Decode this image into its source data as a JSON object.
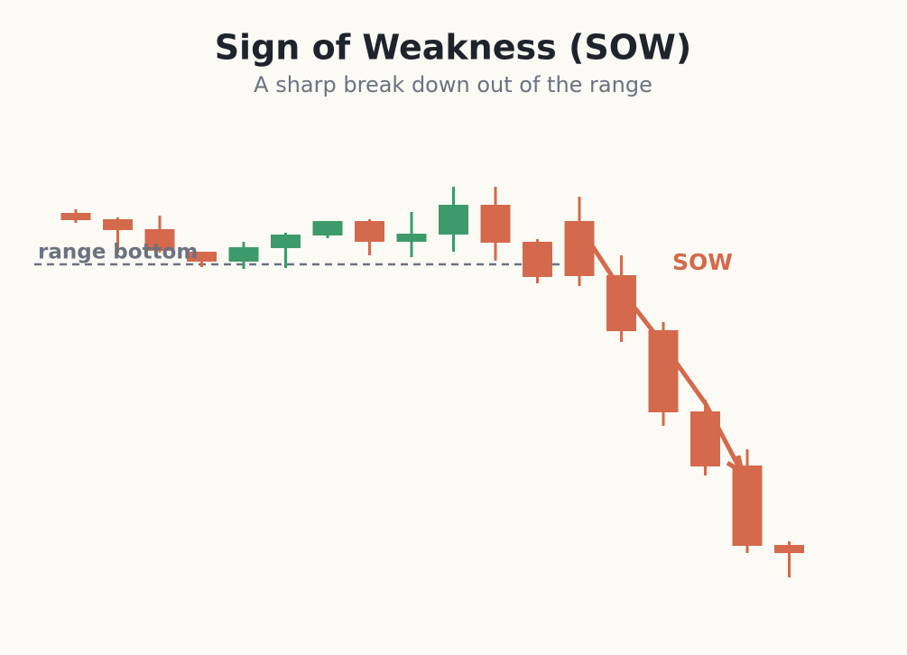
{
  "chart_data": {
    "type": "candlestick",
    "title": "Sign of Weakness (SOW)",
    "subtitle": "A sharp break down out of the range",
    "open": [
      82.8,
      81.4,
      79.2,
      74.2,
      72,
      75,
      77.8,
      81,
      76.4,
      78,
      84.6,
      76.4,
      81,
      69,
      56.8,
      38.8,
      26.8,
      9.2
    ],
    "high": [
      83.6,
      81.8,
      82.2,
      74.2,
      76.4,
      78.4,
      81,
      81.4,
      83,
      88.6,
      88.6,
      77,
      86.4,
      73.4,
      58.6,
      41.4,
      30.4,
      10
    ],
    "low": [
      80.6,
      74,
      74,
      70.8,
      70.4,
      70.6,
      77.2,
      73.4,
      73,
      74.2,
      72.2,
      67.2,
      66.6,
      54.2,
      35.6,
      24.6,
      7.4,
      2
    ],
    "close": [
      81.2,
      79,
      74.4,
      72,
      75.2,
      78,
      81,
      76.4,
      78.2,
      84.6,
      76.2,
      68.6,
      68.8,
      56.6,
      38.6,
      26.6,
      9,
      7.4
    ],
    "up_color": "#3d9a6a",
    "down_color": "#d4694b",
    "ylim": [
      0,
      100
    ],
    "range_bottom": 71.4,
    "range_label": "range bottom",
    "sow_label": "SOW"
  }
}
